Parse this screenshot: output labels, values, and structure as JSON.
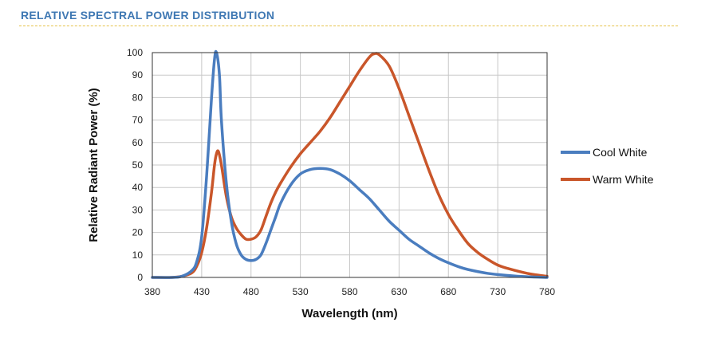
{
  "header": {
    "title": "RELATIVE SPECTRAL POWER DISTRIBUTION"
  },
  "chart_data": {
    "type": "line",
    "xlabel": "Wavelength (nm)",
    "ylabel": "Relative Radiant Power (%)",
    "xlim": [
      380,
      780
    ],
    "ylim": [
      0,
      100
    ],
    "xticks": [
      380,
      430,
      480,
      530,
      580,
      630,
      680,
      730,
      780
    ],
    "yticks": [
      0,
      10,
      20,
      30,
      40,
      50,
      60,
      70,
      80,
      90,
      100
    ],
    "grid": true,
    "legend_position": "right",
    "series": [
      {
        "name": "Cool White",
        "color": "#4a7dbf",
        "x": [
          380,
          400,
          410,
          420,
          425,
          430,
          435,
          440,
          443,
          445,
          448,
          450,
          455,
          460,
          465,
          470,
          475,
          480,
          485,
          490,
          495,
          500,
          505,
          510,
          520,
          530,
          540,
          550,
          560,
          570,
          580,
          590,
          600,
          610,
          620,
          630,
          640,
          650,
          660,
          670,
          680,
          690,
          700,
          720,
          740,
          760,
          780
        ],
        "y": [
          0,
          0,
          0.5,
          3,
          7,
          18,
          45,
          80,
          97,
          100,
          90,
          70,
          42,
          25,
          15,
          10,
          8,
          7.5,
          8,
          10,
          15,
          21,
          27,
          33,
          41,
          46,
          48,
          48.5,
          48,
          46,
          43,
          39,
          35,
          30,
          25,
          21,
          17,
          14,
          11,
          8.5,
          6.5,
          4.8,
          3.5,
          1.8,
          0.9,
          0.3,
          0
        ]
      },
      {
        "name": "Warm White",
        "color": "#c9562a",
        "x": [
          380,
          400,
          410,
          420,
          425,
          430,
          435,
          440,
          443,
          445,
          447,
          450,
          455,
          460,
          465,
          470,
          475,
          480,
          485,
          490,
          495,
          500,
          505,
          510,
          520,
          530,
          540,
          550,
          560,
          570,
          580,
          590,
          600,
          605,
          610,
          620,
          630,
          640,
          650,
          660,
          670,
          680,
          690,
          700,
          710,
          720,
          730,
          740,
          760,
          780
        ],
        "y": [
          0,
          0,
          0.5,
          2,
          5,
          11,
          22,
          38,
          50,
          55,
          56,
          50,
          36,
          27,
          22,
          19,
          17,
          17,
          18,
          21,
          27,
          33,
          38,
          42,
          49,
          55,
          60,
          65,
          71,
          78,
          85,
          92,
          98,
          99.5,
          99,
          94,
          84,
          72,
          60,
          48,
          37,
          28,
          21,
          15,
          11,
          8,
          5.5,
          4,
          1.8,
          0.5
        ]
      }
    ]
  }
}
